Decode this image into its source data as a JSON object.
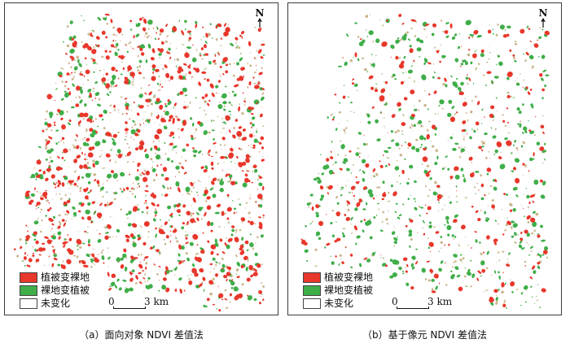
{
  "colors": {
    "veg_to_bare": "#e8372b",
    "bare_to_veg": "#3fae49",
    "unchanged": "#ffffff",
    "faint_background_texture": "#c9b48a"
  },
  "north_label": "N",
  "legend": [
    {
      "label": "植被变裸地",
      "color_key": "veg_to_bare"
    },
    {
      "label": "裸地变植被",
      "color_key": "bare_to_veg"
    },
    {
      "label": "未变化",
      "color_key": "unchanged"
    }
  ],
  "scale_bar": {
    "start": "0",
    "end": "3 km"
  },
  "panels": [
    {
      "id": "a",
      "caption": "（a）面向对象 NDVI 差值法"
    },
    {
      "id": "b",
      "caption": "（b）基于像元 NDVI 差值法"
    }
  ]
}
